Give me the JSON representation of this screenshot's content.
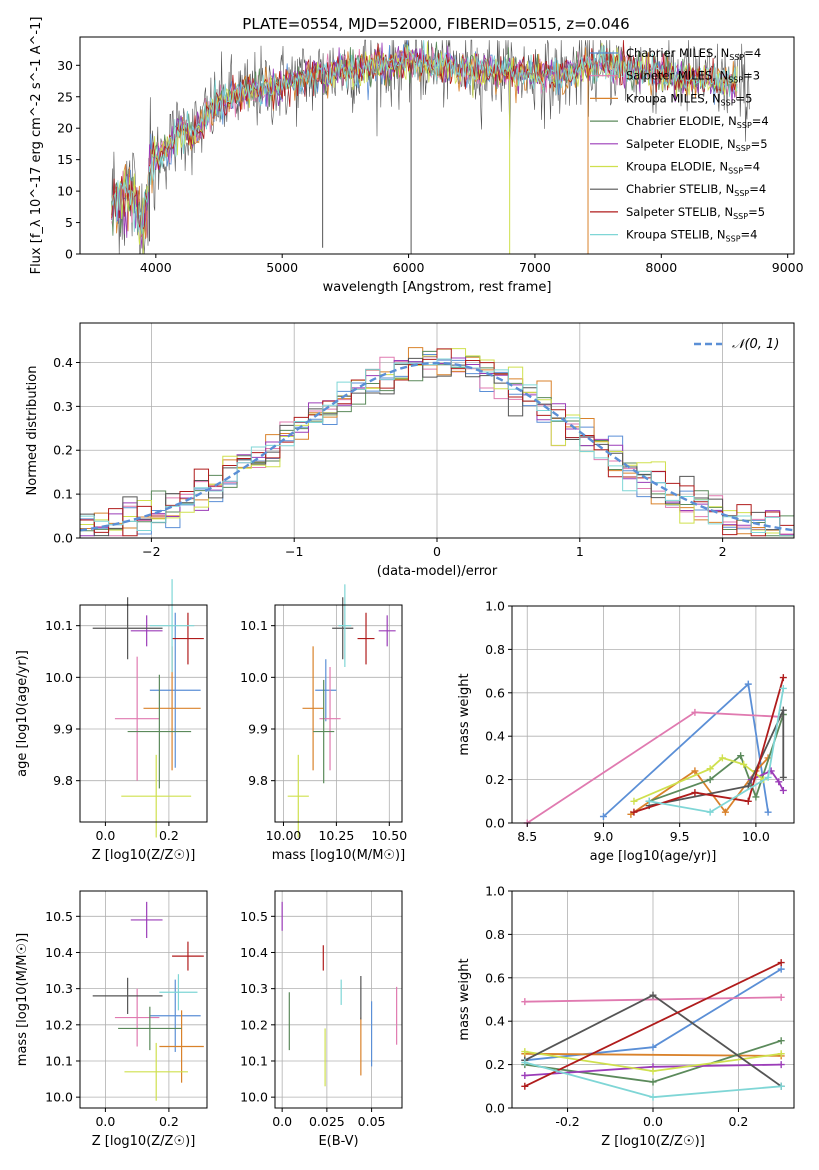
{
  "figure": {
    "title": "PLATE=0554, MJD=52000, FIBERID=0515, z=0.046"
  },
  "series_colors": [
    "#5b8fd6",
    "#e07ab0",
    "#d9822b",
    "#5b8a5b",
    "#9b3cb8",
    "#cfe04e",
    "#555555",
    "#b01c1c",
    "#7fd6d6"
  ],
  "chart_data": [
    {
      "type": "line",
      "panel": "spectrum",
      "xlabel": "wavelength [Angstrom, rest frame]",
      "ylabel": "Flux [f_λ 10^-17 erg cm^-2 s^-1 A^-1]",
      "xlim": [
        3400,
        9050
      ],
      "ylim": [
        0,
        34.5
      ],
      "xticks": [
        4000,
        5000,
        6000,
        7000,
        8000,
        9000
      ],
      "yticks": [
        0,
        5,
        10,
        15,
        20,
        25,
        30
      ],
      "legend_position": "upper-right",
      "legend": [
        {
          "label": "Chabrier MILES, N_SSP=4",
          "color": "#5b8fd6"
        },
        {
          "label": "Salpeter MILES, N_SSP=3",
          "color": "#e07ab0"
        },
        {
          "label": "Kroupa MILES, N_SSP=5",
          "color": "#d9822b"
        },
        {
          "label": "Chabrier ELODIE, N_SSP=4",
          "color": "#5b8a5b"
        },
        {
          "label": "Salpeter ELODIE, N_SSP=5",
          "color": "#9b3cb8"
        },
        {
          "label": "Kroupa ELODIE, N_SSP=4",
          "color": "#cfe04e"
        },
        {
          "label": "Chabrier STELIB, N_SSP=4",
          "color": "#555555"
        },
        {
          "label": "Salpeter STELIB, N_SSP=5",
          "color": "#b01c1c"
        },
        {
          "label": "Kroupa STELIB, N_SSP=4",
          "color": "#7fd6d6"
        }
      ],
      "data_envelope": {
        "x": [
          3650,
          3800,
          3900,
          3950,
          4000,
          4100,
          4200,
          4300,
          4400,
          4500,
          4600,
          4800,
          5000,
          5200,
          5400,
          5600,
          5800,
          6000,
          6200,
          6400,
          6600,
          6800,
          7000,
          7200,
          7400,
          7600,
          7800,
          8000,
          8200,
          8400,
          8600,
          8700
        ],
        "y": [
          8,
          10,
          4,
          13,
          15,
          17,
          20,
          19,
          22,
          24,
          25,
          26,
          27,
          28,
          29,
          29.5,
          30,
          30.5,
          30,
          29.5,
          29,
          29,
          28.5,
          28,
          30,
          30,
          29,
          29,
          28,
          27.5,
          27,
          26
        ]
      }
    },
    {
      "type": "histogram",
      "panel": "residuals",
      "xlabel": "(data-model)/error",
      "ylabel": "Normed distribution",
      "xlim": [
        -2.5,
        2.5
      ],
      "ylim": [
        0,
        0.49
      ],
      "xticks": [
        -2,
        -1,
        0,
        1,
        2
      ],
      "yticks": [
        0.0,
        0.1,
        0.2,
        0.3,
        0.4
      ],
      "legend": [
        {
          "label": "𝒩(0, 1)",
          "color": "#5b8fd6",
          "style": "dashed"
        }
      ],
      "bin_width": 0.1
    },
    {
      "type": "scatter",
      "panel": "age-vs-Z",
      "xlabel": "Z [log10(Z/Z☉)]",
      "ylabel": "age  [log10(age/yr)]",
      "xlim": [
        -0.08,
        0.32
      ],
      "ylim": [
        9.72,
        10.14
      ],
      "xticks": [
        0.0,
        0.2
      ],
      "yticks": [
        9.8,
        9.9,
        10.0,
        10.1
      ],
      "points": [
        {
          "x": 0.22,
          "y": 9.975,
          "xerr": 0.08,
          "yerr": 0.15
        },
        {
          "x": 0.1,
          "y": 9.92,
          "xerr": 0.07,
          "yerr": 0.12
        },
        {
          "x": 0.21,
          "y": 9.94,
          "xerr": 0.09,
          "yerr": 0.12
        },
        {
          "x": 0.17,
          "y": 9.895,
          "xerr": 0.1,
          "yerr": 0.11
        },
        {
          "x": 0.13,
          "y": 10.09,
          "xerr": 0.05,
          "yerr": 0.03
        },
        {
          "x": 0.16,
          "y": 9.77,
          "xerr": 0.11,
          "yerr": 0.08
        },
        {
          "x": 0.07,
          "y": 10.095,
          "xerr": 0.11,
          "yerr": 0.06
        },
        {
          "x": 0.26,
          "y": 10.075,
          "xerr": 0.05,
          "yerr": 0.05
        },
        {
          "x": 0.21,
          "y": 10.1,
          "xerr": 0.07,
          "yerr": 0.09
        }
      ]
    },
    {
      "type": "scatter",
      "panel": "age-vs-mass",
      "xlabel": "mass [log10(M/M☉)]",
      "ylabel": "",
      "xlim": [
        9.96,
        10.56
      ],
      "ylim": [
        9.72,
        10.14
      ],
      "xticks": [
        10.0,
        10.25,
        10.5
      ],
      "yticks": [
        9.8,
        9.9,
        10.0,
        10.1
      ],
      "points": [
        {
          "x": 10.2,
          "y": 9.975,
          "xerr": 0.05,
          "yerr": 0.06
        },
        {
          "x": 10.22,
          "y": 9.92,
          "xerr": 0.05,
          "yerr": 0.1
        },
        {
          "x": 10.14,
          "y": 9.94,
          "xerr": 0.05,
          "yerr": 0.12
        },
        {
          "x": 10.19,
          "y": 9.895,
          "xerr": 0.05,
          "yerr": 0.1
        },
        {
          "x": 10.49,
          "y": 10.09,
          "xerr": 0.04,
          "yerr": 0.03
        },
        {
          "x": 10.07,
          "y": 9.77,
          "xerr": 0.05,
          "yerr": 0.08
        },
        {
          "x": 10.28,
          "y": 10.095,
          "xerr": 0.05,
          "yerr": 0.06
        },
        {
          "x": 10.39,
          "y": 10.075,
          "xerr": 0.04,
          "yerr": 0.05
        },
        {
          "x": 10.29,
          "y": 10.1,
          "xerr": 0.03,
          "yerr": 0.08
        }
      ]
    },
    {
      "type": "line",
      "panel": "mass-weight-vs-age",
      "xlabel": "age  [log10(age/yr)]",
      "ylabel": "mass weight",
      "xlim": [
        8.4,
        10.25
      ],
      "ylim": [
        0,
        1.0
      ],
      "xticks": [
        8.5,
        9.0,
        9.5,
        10.0
      ],
      "yticks": [
        0.0,
        0.2,
        0.4,
        0.6,
        0.8,
        1.0
      ],
      "series": [
        {
          "values": [
            [
              9.0,
              0.03
            ],
            [
              9.95,
              0.64
            ],
            [
              10.08,
              0.05
            ]
          ]
        },
        {
          "values": [
            [
              8.5,
              0.0
            ],
            [
              9.6,
              0.51
            ],
            [
              10.15,
              0.49
            ]
          ]
        },
        {
          "values": [
            [
              9.18,
              0.04
            ],
            [
              9.6,
              0.24
            ],
            [
              9.8,
              0.05
            ],
            [
              10.0,
              0.24
            ],
            [
              10.08,
              0.3
            ]
          ]
        },
        {
          "values": [
            [
              9.3,
              0.1
            ],
            [
              9.7,
              0.2
            ],
            [
              9.9,
              0.31
            ],
            [
              10.0,
              0.12
            ],
            [
              10.18,
              0.5
            ]
          ]
        },
        {
          "values": [
            [
              9.97,
              0.2
            ],
            [
              10.1,
              0.24
            ],
            [
              10.15,
              0.19
            ],
            [
              10.18,
              0.15
            ]
          ]
        },
        {
          "values": [
            [
              9.2,
              0.1
            ],
            [
              9.7,
              0.25
            ],
            [
              9.78,
              0.3
            ],
            [
              9.92,
              0.27
            ],
            [
              10.05,
              0.2
            ]
          ]
        },
        {
          "values": [
            [
              9.3,
              0.08
            ],
            [
              9.95,
              0.17
            ],
            [
              10.18,
              0.52
            ],
            [
              10.18,
              0.21
            ]
          ]
        },
        {
          "values": [
            [
              9.2,
              0.05
            ],
            [
              9.6,
              0.14
            ],
            [
              9.95,
              0.1
            ],
            [
              10.18,
              0.67
            ]
          ]
        },
        {
          "values": [
            [
              9.3,
              0.1
            ],
            [
              9.7,
              0.05
            ],
            [
              10.08,
              0.21
            ],
            [
              10.18,
              0.62
            ]
          ]
        }
      ]
    },
    {
      "type": "scatter",
      "panel": "mass-vs-Z",
      "xlabel": "Z [log10(Z/Z☉)]",
      "ylabel": "mass [log10(M/M☉)]",
      "xlim": [
        -0.08,
        0.32
      ],
      "ylim": [
        9.97,
        10.57
      ],
      "xticks": [
        0.0,
        0.2
      ],
      "yticks": [
        10.0,
        10.1,
        10.2,
        10.3,
        10.4,
        10.5
      ],
      "points": [
        {
          "x": 0.22,
          "y": 10.225,
          "xerr": 0.08,
          "yerr": 0.1
        },
        {
          "x": 0.1,
          "y": 10.22,
          "xerr": 0.07,
          "yerr": 0.08
        },
        {
          "x": 0.24,
          "y": 10.14,
          "xerr": 0.07,
          "yerr": 0.1
        },
        {
          "x": 0.14,
          "y": 10.19,
          "xerr": 0.1,
          "yerr": 0.06
        },
        {
          "x": 0.13,
          "y": 10.49,
          "xerr": 0.05,
          "yerr": 0.05
        },
        {
          "x": 0.16,
          "y": 10.07,
          "xerr": 0.1,
          "yerr": 0.08
        },
        {
          "x": 0.07,
          "y": 10.28,
          "xerr": 0.11,
          "yerr": 0.05
        },
        {
          "x": 0.26,
          "y": 10.39,
          "xerr": 0.05,
          "yerr": 0.04
        },
        {
          "x": 0.23,
          "y": 10.29,
          "xerr": 0.06,
          "yerr": 0.05
        }
      ]
    },
    {
      "type": "scatter",
      "panel": "mass-vs-EBV",
      "xlabel": "E(B-V)",
      "ylabel": "",
      "xlim": [
        -0.004,
        0.067
      ],
      "ylim": [
        9.97,
        10.57
      ],
      "xticks": [
        0.0,
        0.025,
        0.05
      ],
      "yticks": [
        10.0,
        10.1,
        10.2,
        10.3,
        10.4,
        10.5
      ],
      "points": [
        {
          "x": 0.05,
          "y": 10.175,
          "xerr": 0.0,
          "yerr": 0.09
        },
        {
          "x": 0.064,
          "y": 10.225,
          "xerr": 0.0,
          "yerr": 0.08
        },
        {
          "x": 0.044,
          "y": 10.14,
          "xerr": 0.0,
          "yerr": 0.08
        },
        {
          "x": 0.004,
          "y": 10.21,
          "xerr": 0.0,
          "yerr": 0.08
        },
        {
          "x": 0.0,
          "y": 10.5,
          "xerr": 0.0,
          "yerr": 0.04
        },
        {
          "x": 0.024,
          "y": 10.11,
          "xerr": 0.0,
          "yerr": 0.08
        },
        {
          "x": 0.044,
          "y": 10.275,
          "xerr": 0.0,
          "yerr": 0.06
        },
        {
          "x": 0.023,
          "y": 10.385,
          "xerr": 0.0,
          "yerr": 0.035
        },
        {
          "x": 0.033,
          "y": 10.29,
          "xerr": 0.0,
          "yerr": 0.035
        }
      ]
    },
    {
      "type": "line",
      "panel": "mass-weight-vs-Z",
      "xlabel": "Z [log10(Z/Z☉)]",
      "ylabel": "mass weight",
      "xlim": [
        -0.33,
        0.33
      ],
      "ylim": [
        0,
        1.0
      ],
      "xticks": [
        -0.2,
        0.0,
        0.2
      ],
      "yticks": [
        0.0,
        0.2,
        0.4,
        0.6,
        0.8,
        1.0
      ],
      "series": [
        {
          "values": [
            [
              -0.3,
              0.22
            ],
            [
              0.0,
              0.28
            ],
            [
              0.3,
              0.64
            ]
          ]
        },
        {
          "values": [
            [
              -0.3,
              0.49
            ],
            [
              0.3,
              0.51
            ]
          ]
        },
        {
          "values": [
            [
              -0.3,
              0.25
            ],
            [
              0.3,
              0.24
            ]
          ]
        },
        {
          "values": [
            [
              -0.3,
              0.2
            ],
            [
              0.0,
              0.12
            ],
            [
              0.3,
              0.31
            ]
          ]
        },
        {
          "values": [
            [
              -0.3,
              0.15
            ],
            [
              0.0,
              0.19
            ],
            [
              0.3,
              0.2
            ]
          ]
        },
        {
          "values": [
            [
              -0.3,
              0.26
            ],
            [
              0.0,
              0.17
            ],
            [
              0.3,
              0.25
            ]
          ]
        },
        {
          "values": [
            [
              -0.3,
              0.22
            ],
            [
              0.0,
              0.52
            ],
            [
              0.3,
              0.1
            ]
          ]
        },
        {
          "values": [
            [
              -0.3,
              0.1
            ],
            [
              0.3,
              0.67
            ]
          ]
        },
        {
          "values": [
            [
              -0.3,
              0.21
            ],
            [
              0.0,
              0.05
            ],
            [
              0.3,
              0.1
            ]
          ]
        }
      ]
    }
  ]
}
